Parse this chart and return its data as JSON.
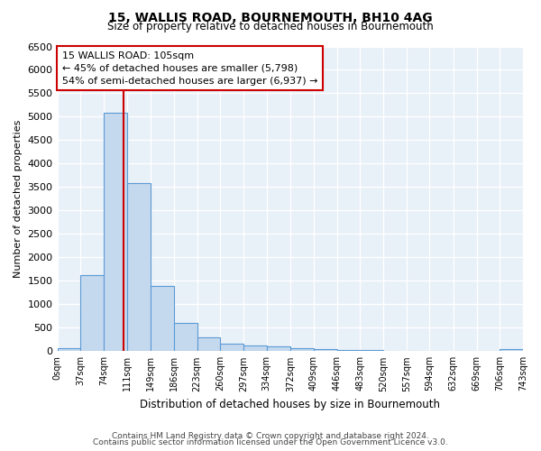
{
  "title_line1": "15, WALLIS ROAD, BOURNEMOUTH, BH10 4AG",
  "title_line2": "Size of property relative to detached houses in Bournemouth",
  "xlabel": "Distribution of detached houses by size in Bournemouth",
  "ylabel": "Number of detached properties",
  "bar_color": "#c5d9ee",
  "bar_edge_color": "#5b9bd5",
  "background_color": "#e8f0f8",
  "grid_color": "#ffffff",
  "vline_x": 105,
  "vline_color": "#cc0000",
  "annotation_line1": "15 WALLIS ROAD: 105sqm",
  "annotation_line2": "← 45% of detached houses are smaller (5,798)",
  "annotation_line3": "54% of semi-detached houses are larger (6,937) →",
  "annotation_box_color": "white",
  "annotation_box_edge": "#cc0000",
  "bin_edges": [
    0,
    37,
    74,
    111,
    149,
    186,
    223,
    260,
    297,
    334,
    372,
    409,
    446,
    483,
    520,
    557,
    594,
    632,
    669,
    706,
    743
  ],
  "bar_heights": [
    70,
    1620,
    5080,
    3580,
    1400,
    610,
    295,
    155,
    130,
    95,
    60,
    50,
    30,
    20,
    15,
    10,
    8,
    5,
    5,
    40
  ],
  "ylim": [
    0,
    6500
  ],
  "yticks": [
    0,
    500,
    1000,
    1500,
    2000,
    2500,
    3000,
    3500,
    4000,
    4500,
    5000,
    5500,
    6000,
    6500
  ],
  "footer_line1": "Contains HM Land Registry data © Crown copyright and database right 2024.",
  "footer_line2": "Contains public sector information licensed under the Open Government Licence v3.0."
}
